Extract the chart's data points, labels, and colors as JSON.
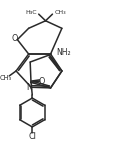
{
  "bg_color": "#ffffff",
  "line_color": "#2a2a2a",
  "line_width": 1.1,
  "figsize": [
    1.29,
    1.67
  ],
  "dpi": 100,
  "xlim": [
    0,
    10
  ],
  "ylim": [
    0,
    13
  ]
}
